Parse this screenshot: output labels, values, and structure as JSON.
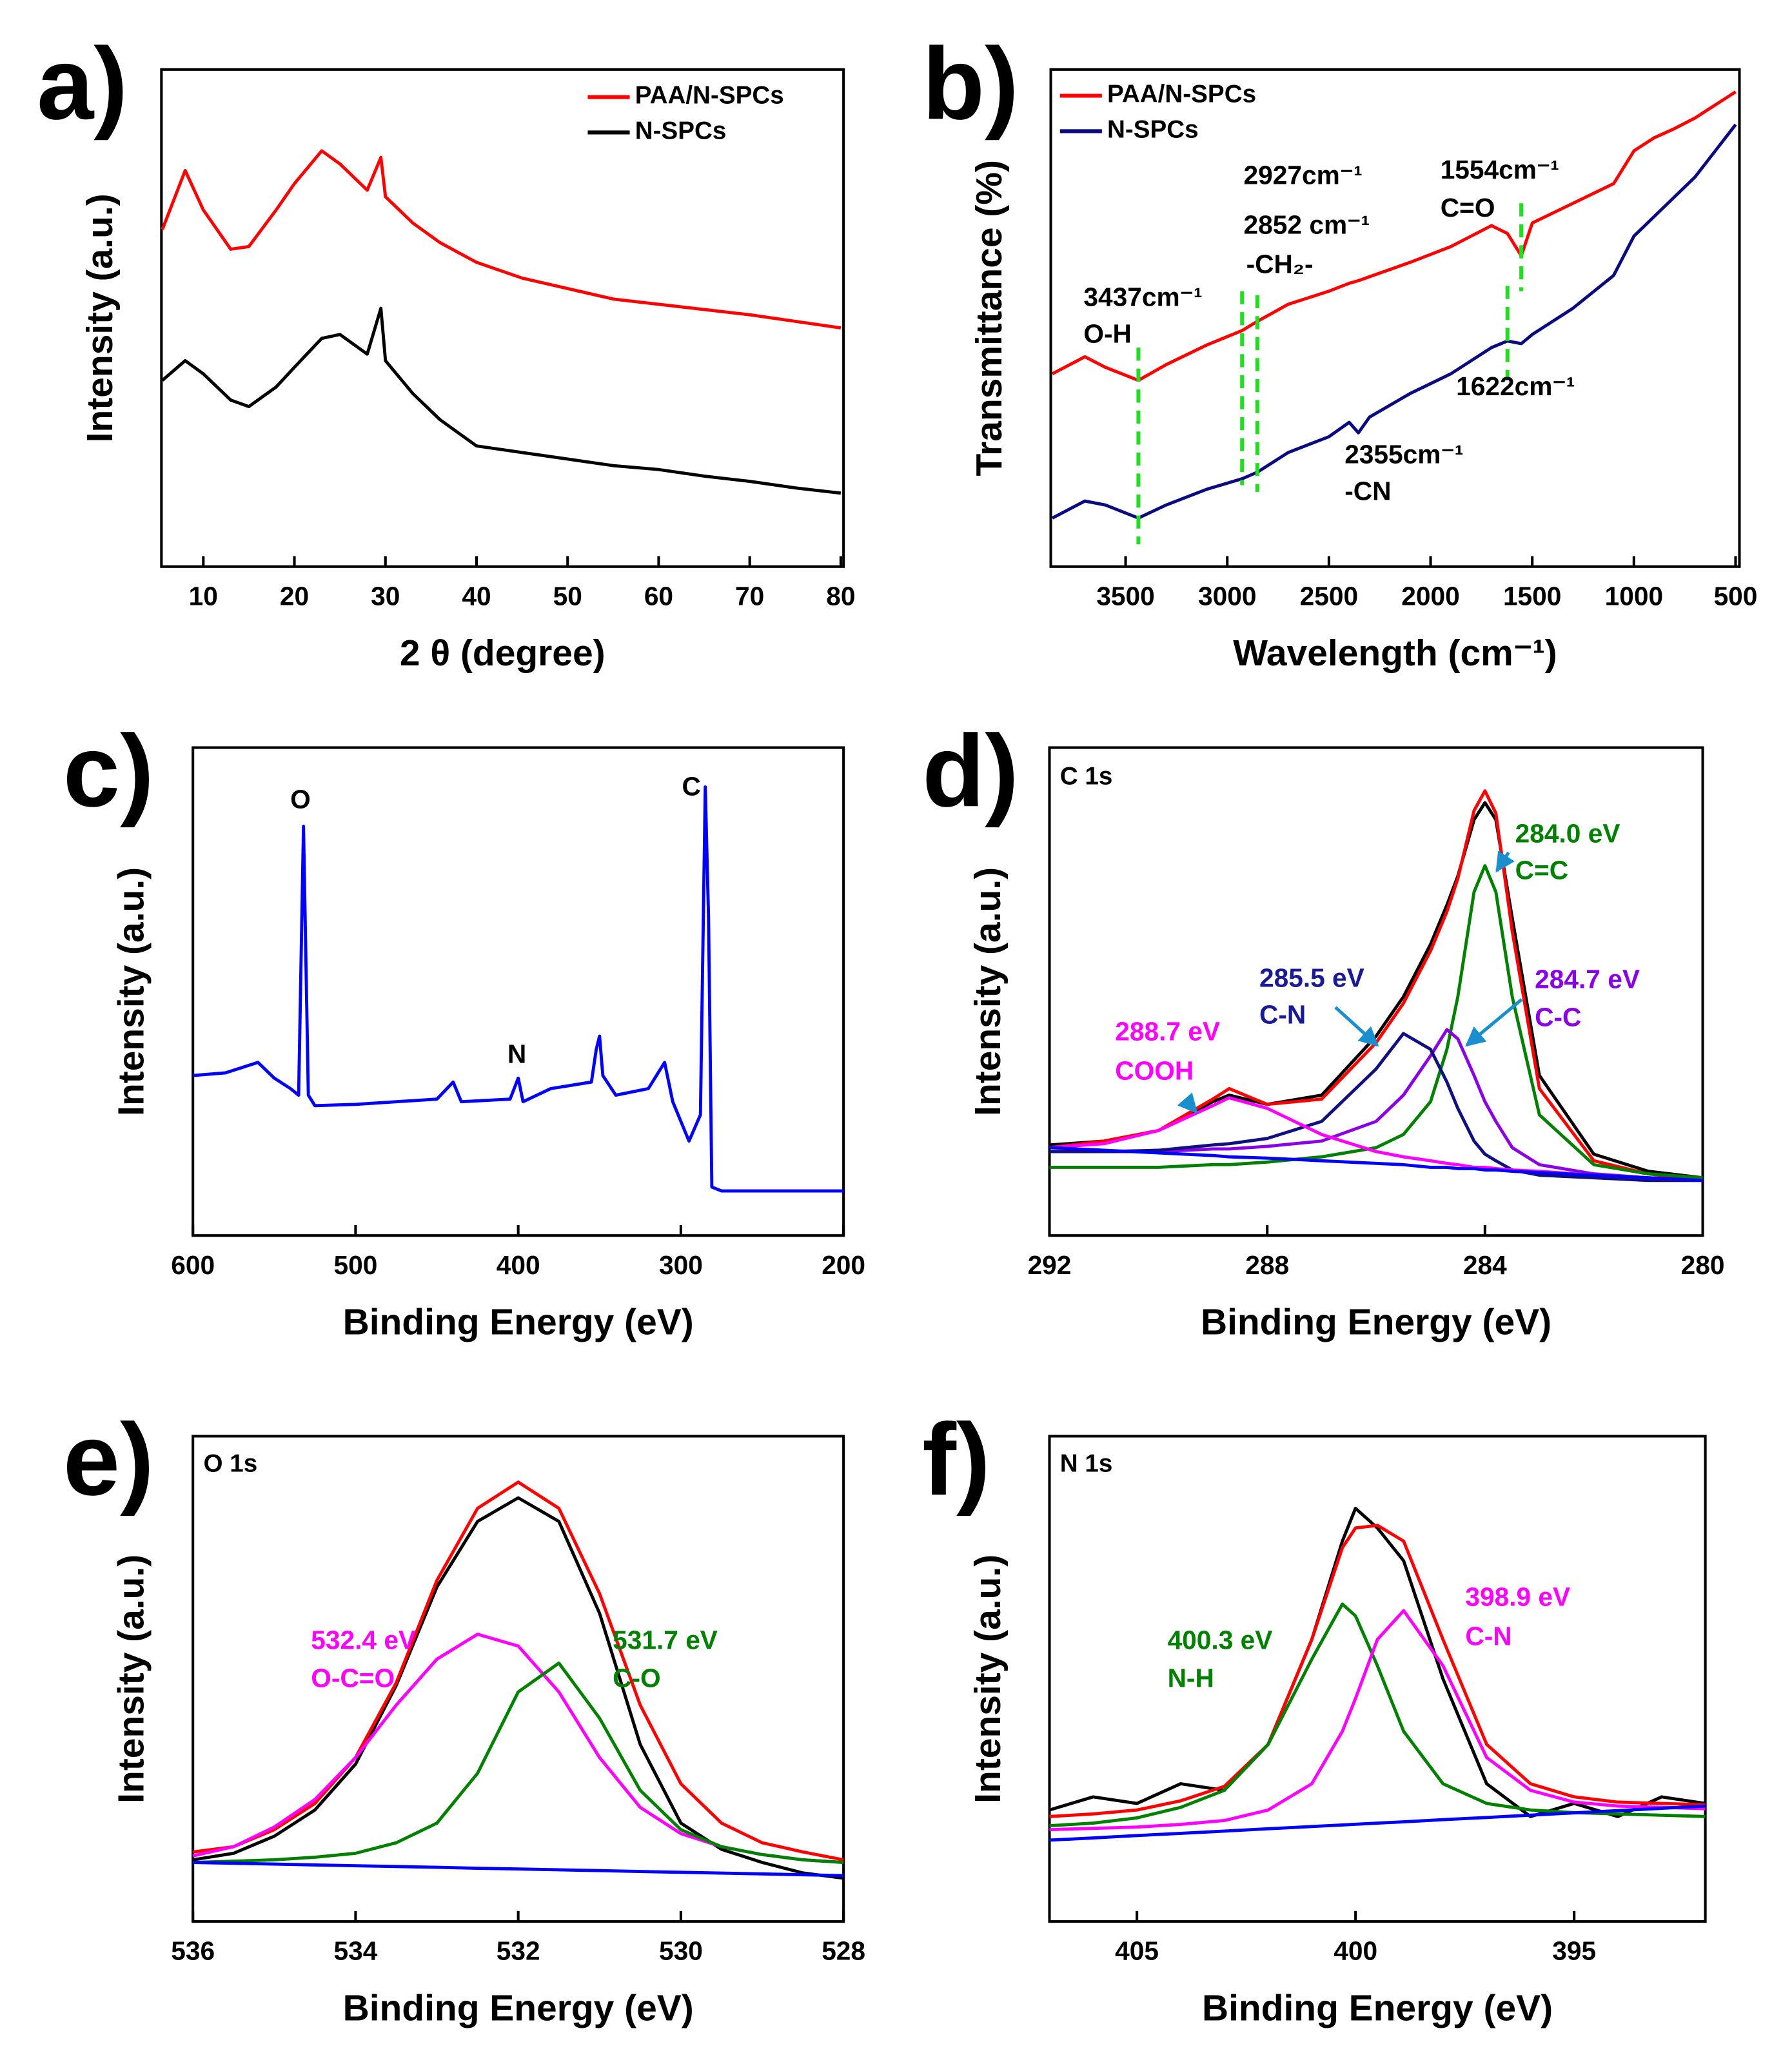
{
  "chart_data": [
    {
      "type": "line",
      "panel": "a)",
      "xlabel": "2 θ (degree)",
      "ylabel": "Intensity (a.u.)",
      "xlim": [
        5.4,
        80.3
      ],
      "xticks": [
        10,
        20,
        30,
        40,
        50,
        60,
        70,
        80
      ],
      "ylim": [
        0,
        379
      ],
      "x": [
        5.5,
        8,
        10,
        13,
        15,
        18,
        20,
        23,
        25,
        28,
        29.5,
        30,
        33,
        36,
        40,
        45,
        50,
        55,
        60,
        65,
        70,
        75,
        80
      ],
      "series": [
        {
          "name": "PAA/N-SPCs",
          "color": "#ff0000",
          "values": [
            257,
            302,
            272,
            242,
            244,
            272,
            292,
            317,
            307,
            287,
            312,
            282,
            262,
            247,
            232,
            220,
            212,
            204,
            200,
            196,
            192,
            187,
            182
          ]
        },
        {
          "name": "N-SPCs",
          "color": "#000000",
          "values": [
            142,
            157,
            147,
            127,
            122,
            137,
            152,
            174,
            177,
            162,
            197,
            157,
            132,
            112,
            92,
            87,
            82,
            77,
            74,
            69,
            65,
            60,
            56
          ]
        }
      ]
    },
    {
      "type": "line",
      "panel": "b)",
      "xlabel": "Wavelength (cm⁻¹)",
      "ylabel": "Transmittance (%)",
      "xlim": [
        3868,
        481
      ],
      "xticks": [
        3500,
        3000,
        2500,
        2000,
        1500,
        1000,
        500
      ],
      "ylim": [
        0,
        379
      ],
      "x": [
        3860,
        3700,
        3600,
        3437,
        3300,
        3100,
        2927,
        2852,
        2700,
        2500,
        2400,
        2355,
        2300,
        2100,
        1900,
        1700,
        1622,
        1554,
        1500,
        1300,
        1100,
        1000,
        900,
        800,
        700,
        600,
        500
      ],
      "series": [
        {
          "name": "PAA/N-SPCs",
          "color": "#ff0000",
          "values": [
            147,
            160,
            152,
            142,
            154,
            169,
            180,
            187,
            200,
            210,
            216,
            218,
            221,
            232,
            244,
            260,
            254,
            237,
            262,
            277,
            292,
            317,
            327,
            334,
            342,
            352,
            362
          ]
        },
        {
          "name": "N-SPCs",
          "color": "#0a0a80",
          "values": [
            37,
            50,
            47,
            37,
            47,
            59,
            67,
            72,
            87,
            99,
            110,
            102,
            114,
            132,
            147,
            167,
            172,
            170,
            177,
            197,
            222,
            252,
            267,
            282,
            297,
            317,
            337
          ]
        }
      ],
      "markers": [
        3437,
        2927,
        2852,
        1622,
        1554
      ],
      "marker_color": "#22dd22",
      "annotations": [
        {
          "text": "3437cm⁻¹"
        },
        {
          "text": "O-H"
        },
        {
          "text": "2927cm⁻¹"
        },
        {
          "text": "2852 cm⁻¹"
        },
        {
          "text": "-CH₂-"
        },
        {
          "text": "1554cm⁻¹"
        },
        {
          "text": "C=O"
        },
        {
          "text": "1622cm⁻¹"
        },
        {
          "text": "2355cm⁻¹"
        },
        {
          "text": "-CN"
        }
      ]
    },
    {
      "type": "line",
      "panel": "c)",
      "xlabel": "Binding Energy (eV)",
      "ylabel": "Intensity (a.u.)",
      "xlim": [
        600,
        200
      ],
      "xticks": [
        600,
        500,
        400,
        300,
        200
      ],
      "ylim": [
        0,
        372
      ],
      "x": [
        600,
        580,
        560,
        550,
        540,
        535,
        532,
        529,
        525,
        500,
        450,
        440,
        435,
        405,
        400,
        397,
        380,
        355,
        352,
        350,
        348,
        340,
        320,
        310,
        305,
        295,
        288,
        285,
        283,
        281,
        275,
        200
      ],
      "series": [
        {
          "color": "#0000ff",
          "values": [
            122,
            124,
            132,
            120,
            112,
            107,
            312,
            107,
            99,
            100,
            104,
            117,
            102,
            104,
            120,
            102,
            112,
            117,
            142,
            152,
            122,
            107,
            112,
            132,
            102,
            72,
            92,
            342,
            242,
            37,
            34,
            34
          ]
        }
      ],
      "annotations": [
        {
          "text": "O"
        },
        {
          "text": "N"
        },
        {
          "text": "C"
        }
      ]
    },
    {
      "type": "line",
      "panel": "d)",
      "xlabel": "Binding Energy (eV)",
      "ylabel": "Intensity (a.u.)",
      "xlim": [
        292,
        280
      ],
      "xticks": [
        292,
        288,
        284,
        280
      ],
      "ylim": [
        0,
        372
      ],
      "x": [
        292,
        291,
        290,
        289,
        288.7,
        288,
        287,
        286,
        285.5,
        285,
        284.7,
        284.5,
        284.2,
        284,
        283.8,
        283.5,
        283,
        282,
        281,
        280
      ],
      "series": [
        {
          "color": "#000000",
          "values": [
            69,
            72,
            80,
            102,
            107,
            100,
            107,
            152,
            182,
            222,
            252,
            274,
            317,
            330,
            317,
            242,
            122,
            62,
            49,
            44
          ]
        },
        {
          "color": "#ff0000",
          "values": [
            67,
            72,
            80,
            104,
            112,
            100,
            104,
            147,
            177,
            217,
            247,
            272,
            324,
            339,
            322,
            232,
            112,
            57,
            47,
            42
          ]
        },
        {
          "color": "#008000",
          "values": [
            52,
            52,
            52,
            54,
            54,
            56,
            60,
            67,
            77,
            102,
            142,
            182,
            262,
            282,
            262,
            182,
            92,
            54,
            47,
            44
          ]
        },
        {
          "color": "#8a00e6",
          "values": [
            64,
            64,
            64,
            66,
            66,
            68,
            72,
            87,
            107,
            137,
            157,
            150,
            122,
            102,
            87,
            67,
            54,
            47,
            44,
            42
          ]
        },
        {
          "color": "#101080",
          "values": [
            64,
            64,
            65,
            69,
            70,
            74,
            87,
            127,
            154,
            142,
            117,
            97,
            72,
            62,
            57,
            50,
            46,
            44,
            42,
            42
          ]
        },
        {
          "color": "#ff00ff",
          "values": [
            67,
            70,
            80,
            99,
            105,
            97,
            77,
            64,
            60,
            57,
            55,
            54,
            52,
            52,
            51,
            50,
            49,
            46,
            44,
            42
          ]
        },
        {
          "color": "#0000ff",
          "values": [
            67,
            65,
            63,
            61,
            60,
            59,
            57,
            55,
            54,
            52,
            52,
            51,
            51,
            50,
            50,
            49,
            48,
            46,
            44,
            42
          ]
        }
      ],
      "annotations": [
        {
          "text": "C 1s",
          "color": "#000000"
        },
        {
          "text": "288.7 eV",
          "color": "#ff00ff"
        },
        {
          "text": "COOH",
          "color": "#ff00ff"
        },
        {
          "text": "285.5 eV",
          "color": "#1a1a99"
        },
        {
          "text": "C-N",
          "color": "#1a1a99"
        },
        {
          "text": "284.7 eV",
          "color": "#8a00e6"
        },
        {
          "text": "C-C",
          "color": "#8a00e6"
        },
        {
          "text": "284.0 eV",
          "color": "#008000"
        },
        {
          "text": "C=C",
          "color": "#008000"
        }
      ]
    },
    {
      "type": "line",
      "panel": "e)",
      "xlabel": "Binding Energy (eV)",
      "ylabel": "Intensity (a.u.)",
      "xlim": [
        536,
        528
      ],
      "xticks": [
        536,
        534,
        532,
        530,
        528
      ],
      "ylim": [
        0,
        370
      ],
      "x": [
        536,
        535.5,
        535,
        534.5,
        534,
        533.5,
        533,
        532.5,
        532,
        531.5,
        531,
        530.5,
        530,
        529.5,
        529,
        528.5,
        528
      ],
      "series": [
        {
          "color": "#000000",
          "values": [
            47,
            52,
            65,
            85,
            120,
            180,
            255,
            305,
            323,
            305,
            235,
            135,
            75,
            55,
            45,
            37,
            33
          ]
        },
        {
          "color": "#ff0000",
          "values": [
            53,
            57,
            70,
            90,
            125,
            182,
            260,
            315,
            335,
            315,
            250,
            165,
            105,
            75,
            60,
            53,
            47
          ]
        },
        {
          "color": "#ff00ff",
          "values": [
            50,
            57,
            72,
            93,
            125,
            165,
            200,
            219,
            210,
            175,
            125,
            87,
            67,
            57,
            51,
            47,
            45
          ]
        },
        {
          "color": "#008000",
          "values": [
            45,
            46,
            47,
            49,
            52,
            60,
            75,
            113,
            175,
            197,
            155,
            100,
            70,
            57,
            51,
            47,
            45
          ]
        },
        {
          "color": "#0000ff",
          "values": [
            45,
            44.4,
            43.8,
            43.1,
            42.5,
            41.9,
            41.3,
            40.6,
            40,
            39.4,
            38.8,
            38.1,
            37.5,
            36.9,
            36.3,
            35.6,
            35
          ]
        }
      ],
      "annotations": [
        {
          "text": "O 1s",
          "color": "#000000"
        },
        {
          "text": "532.4 eV",
          "color": "#ff00ff"
        },
        {
          "text": "O-C=O",
          "color": "#ff00ff"
        },
        {
          "text": "531.7 eV",
          "color": "#008000"
        },
        {
          "text": "C-O",
          "color": "#008000"
        }
      ]
    },
    {
      "type": "line",
      "panel": "f)",
      "xlabel": "Binding Energy (eV)",
      "ylabel": "Intensity (a.u.)",
      "xlim": [
        407,
        392
      ],
      "xticks": [
        405,
        400,
        395
      ],
      "ylim": [
        0,
        370
      ],
      "x": [
        407,
        406,
        405,
        404,
        403,
        402,
        401,
        400.3,
        400,
        399.5,
        398.9,
        398,
        397,
        396,
        395,
        394,
        393,
        392
      ],
      "series": [
        {
          "color": "#000000",
          "values": [
            85,
            95,
            90,
            105,
            100,
            135,
            215,
            290,
            315,
            300,
            275,
            185,
            105,
            80,
            90,
            80,
            95,
            90
          ]
        },
        {
          "color": "#ff0000",
          "values": [
            80,
            82,
            85,
            92,
            103,
            135,
            215,
            285,
            300,
            302,
            290,
            215,
            135,
            105,
            95,
            91,
            90,
            89
          ]
        },
        {
          "color": "#008000",
          "values": [
            73,
            75,
            79,
            87,
            100,
            135,
            200,
            242,
            233,
            195,
            145,
            105,
            90,
            85,
            83,
            82,
            81,
            80
          ]
        },
        {
          "color": "#ff00ff",
          "values": [
            70,
            71,
            72,
            74,
            77,
            85,
            105,
            145,
            170,
            215,
            237,
            195,
            125,
            100,
            91,
            88,
            87,
            86
          ]
        },
        {
          "color": "#0000ff",
          "values": [
            62,
            63.7,
            65.5,
            67.2,
            68.9,
            70.7,
            72.4,
            73.6,
            74.1,
            75,
            76,
            77.6,
            79.3,
            81.1,
            82.8,
            84.5,
            86.3,
            88
          ]
        }
      ],
      "annotations": [
        {
          "text": "N 1s",
          "color": "#000000"
        },
        {
          "text": "400.3 eV",
          "color": "#008000"
        },
        {
          "text": "N-H",
          "color": "#008000"
        },
        {
          "text": "398.9 eV",
          "color": "#ff00ff"
        },
        {
          "text": "C-N",
          "color": "#ff00ff"
        }
      ]
    }
  ]
}
